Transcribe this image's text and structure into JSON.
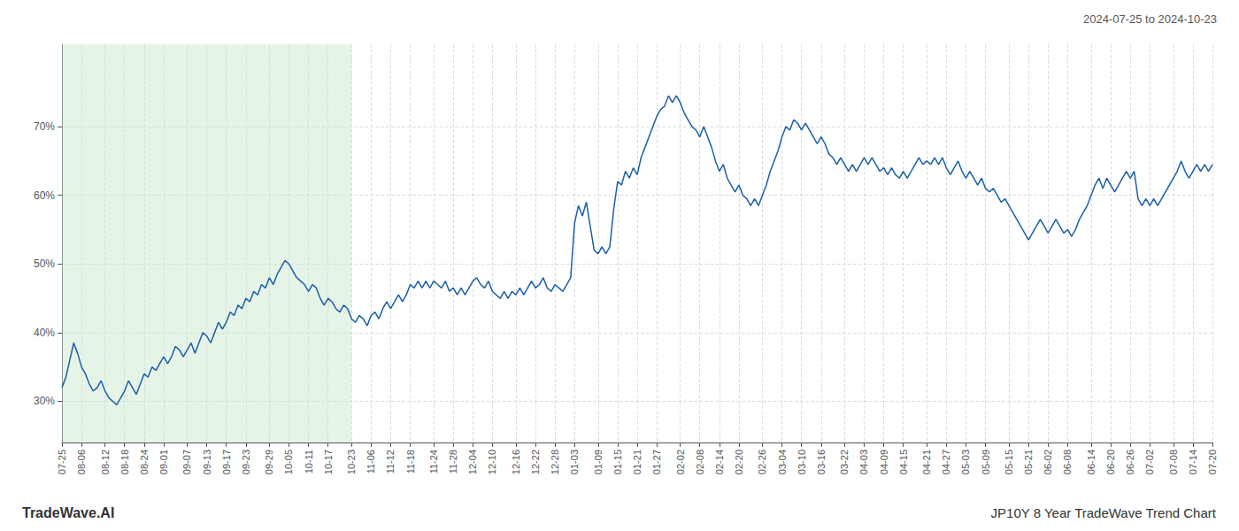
{
  "chart_data": {
    "type": "line",
    "title": "JP10Y 8 Year TradeWave Trend Chart",
    "subtitle": "2024-07-25 to 2024-10-23",
    "annotations": [
      "TradeWave.AI"
    ],
    "color": "#1a5fa8",
    "grid": true,
    "ylim": [
      24,
      82
    ],
    "yticks": [
      {
        "value": 30,
        "label": "30%"
      },
      {
        "value": 40,
        "label": "40%"
      },
      {
        "value": 50,
        "label": "50%"
      },
      {
        "value": 60,
        "label": "60%"
      },
      {
        "value": 70,
        "label": "70%"
      }
    ],
    "span": {
      "from": "07-25",
      "to": "10-23",
      "color": "#c8e6c9"
    },
    "categories": [
      "07-25",
      null,
      null,
      null,
      null,
      "08-06",
      null,
      null,
      null,
      null,
      null,
      "08-12",
      null,
      null,
      null,
      null,
      "08-18",
      null,
      null,
      null,
      null,
      "08-24",
      null,
      null,
      null,
      null,
      "09-01",
      null,
      null,
      null,
      null,
      null,
      "09-07",
      null,
      null,
      null,
      null,
      "09-13",
      null,
      null,
      null,
      null,
      "09-17",
      null,
      null,
      null,
      null,
      "09-23",
      null,
      null,
      null,
      null,
      null,
      "09-29",
      null,
      null,
      null,
      null,
      "10-05",
      null,
      null,
      null,
      null,
      "10-11",
      null,
      null,
      null,
      null,
      "10-17",
      null,
      null,
      null,
      null,
      null,
      "10-23",
      null,
      null,
      null,
      null,
      "11-06",
      null,
      null,
      null,
      null,
      "11-12",
      null,
      null,
      null,
      null,
      "11-18",
      null,
      null,
      null,
      null,
      null,
      "11-24",
      null,
      null,
      null,
      null,
      "11-28",
      null,
      null,
      null,
      null,
      "12-04",
      null,
      null,
      null,
      null,
      "12-10",
      null,
      null,
      null,
      null,
      null,
      "12-16",
      null,
      null,
      null,
      null,
      "12-22",
      null,
      null,
      null,
      null,
      "12-28",
      null,
      null,
      null,
      null,
      "01-03",
      null,
      null,
      null,
      null,
      null,
      "01-09",
      null,
      null,
      null,
      null,
      "01-15",
      null,
      null,
      null,
      null,
      "01-21",
      null,
      null,
      null,
      null,
      "01-27",
      null,
      null,
      null,
      null,
      null,
      "02-02",
      null,
      null,
      null,
      null,
      "02-08",
      null,
      null,
      null,
      null,
      "02-14",
      null,
      null,
      null,
      null,
      "02-20",
      null,
      null,
      null,
      null,
      null,
      "02-26",
      null,
      null,
      null,
      null,
      "03-04",
      null,
      null,
      null,
      null,
      "03-10",
      null,
      null,
      null,
      null,
      "03-16",
      null,
      null,
      null,
      null,
      null,
      "03-22",
      null,
      null,
      null,
      null,
      "04-03",
      null,
      null,
      null,
      null,
      "04-09",
      null,
      null,
      null,
      null,
      "04-15",
      null,
      null,
      null,
      null,
      null,
      "04-21",
      null,
      null,
      null,
      null,
      "04-27",
      null,
      null,
      null,
      null,
      "05-03",
      null,
      null,
      null,
      null,
      "05-09",
      null,
      null,
      null,
      null,
      null,
      "05-15",
      null,
      null,
      null,
      null,
      "05-21",
      null,
      null,
      null,
      null,
      "06-02",
      null,
      null,
      null,
      null,
      "06-08",
      null,
      null,
      null,
      null,
      null,
      "06-14",
      null,
      null,
      null,
      null,
      "06-20",
      null,
      null,
      null,
      null,
      "06-26",
      null,
      null,
      null,
      null,
      "07-02",
      null,
      null,
      null,
      null,
      null,
      "07-08",
      null,
      null,
      null,
      null,
      "07-14",
      null,
      null,
      null,
      null,
      "07-20"
    ],
    "values": [
      32.0,
      33.5,
      36.0,
      38.5,
      37.0,
      35.0,
      34.0,
      32.5,
      31.5,
      32.0,
      33.0,
      31.5,
      30.5,
      30.0,
      29.5,
      30.5,
      31.5,
      33.0,
      32.0,
      31.0,
      32.5,
      34.0,
      33.5,
      35.0,
      34.5,
      35.5,
      36.5,
      35.5,
      36.5,
      38.0,
      37.5,
      36.5,
      37.5,
      38.5,
      37.0,
      38.5,
      40.0,
      39.5,
      38.5,
      40.0,
      41.5,
      40.5,
      41.5,
      43.0,
      42.5,
      44.0,
      43.5,
      45.0,
      44.5,
      46.0,
      45.5,
      47.0,
      46.5,
      48.0,
      47.0,
      48.5,
      49.5,
      50.5,
      50.0,
      49.0,
      48.0,
      47.5,
      47.0,
      46.0,
      47.0,
      46.5,
      45.0,
      44.0,
      45.0,
      44.5,
      43.5,
      43.0,
      44.0,
      43.5,
      42.0,
      41.5,
      42.5,
      42.0,
      41.0,
      42.5,
      43.0,
      42.0,
      43.5,
      44.5,
      43.5,
      44.5,
      45.5,
      44.5,
      45.5,
      47.0,
      46.5,
      47.5,
      46.5,
      47.5,
      46.5,
      47.5,
      47.0,
      46.5,
      47.5,
      46.0,
      46.5,
      45.5,
      46.5,
      45.5,
      46.5,
      47.5,
      48.0,
      47.0,
      46.5,
      47.5,
      46.0,
      45.5,
      45.0,
      46.0,
      45.0,
      46.0,
      45.5,
      46.5,
      45.5,
      46.5,
      47.5,
      46.5,
      47.0,
      48.0,
      46.5,
      46.0,
      47.0,
      46.5,
      46.0,
      47.0,
      48.0,
      56.0,
      58.5,
      57.0,
      59.0,
      55.5,
      52.0,
      51.5,
      52.5,
      51.5,
      52.5,
      58.0,
      62.0,
      61.5,
      63.5,
      62.5,
      64.0,
      63.0,
      65.5,
      67.0,
      68.5,
      70.0,
      71.5,
      72.5,
      73.0,
      74.5,
      73.5,
      74.5,
      73.5,
      72.0,
      71.0,
      70.0,
      69.5,
      68.5,
      70.0,
      68.5,
      67.0,
      65.0,
      63.5,
      64.5,
      62.5,
      61.5,
      60.5,
      61.5,
      60.0,
      59.5,
      58.5,
      59.5,
      58.5,
      60.0,
      61.5,
      63.5,
      65.0,
      66.5,
      68.5,
      70.0,
      69.5,
      71.0,
      70.5,
      69.5,
      70.5,
      69.5,
      68.5,
      67.5,
      68.5,
      67.5,
      66.0,
      65.5,
      64.5,
      65.5,
      64.5,
      63.5,
      64.5,
      63.5,
      64.5,
      65.5,
      64.5,
      65.5,
      64.5,
      63.5,
      64.0,
      63.0,
      64.0,
      63.0,
      62.5,
      63.5,
      62.5,
      63.5,
      64.5,
      65.5,
      64.5,
      65.0,
      64.5,
      65.5,
      64.5,
      65.5,
      64.0,
      63.0,
      64.0,
      65.0,
      63.5,
      62.5,
      63.5,
      62.5,
      61.5,
      62.5,
      61.0,
      60.5,
      61.0,
      60.0,
      59.0,
      59.5,
      58.5,
      57.5,
      56.5,
      55.5,
      54.5,
      53.5,
      54.5,
      55.5,
      56.5,
      55.5,
      54.5,
      55.5,
      56.5,
      55.5,
      54.5,
      55.0,
      54.0,
      55.0,
      56.5,
      57.5,
      58.5,
      60.0,
      61.5,
      62.5,
      61.0,
      62.5,
      61.5,
      60.5,
      61.5,
      62.5,
      63.5,
      62.5,
      63.5,
      59.5,
      58.5,
      59.5,
      58.5,
      59.5,
      58.5,
      59.5,
      60.5,
      61.5,
      62.5,
      63.5,
      65.0,
      63.5,
      62.5,
      63.5,
      64.5,
      63.5,
      64.5,
      63.5,
      64.5
    ]
  }
}
